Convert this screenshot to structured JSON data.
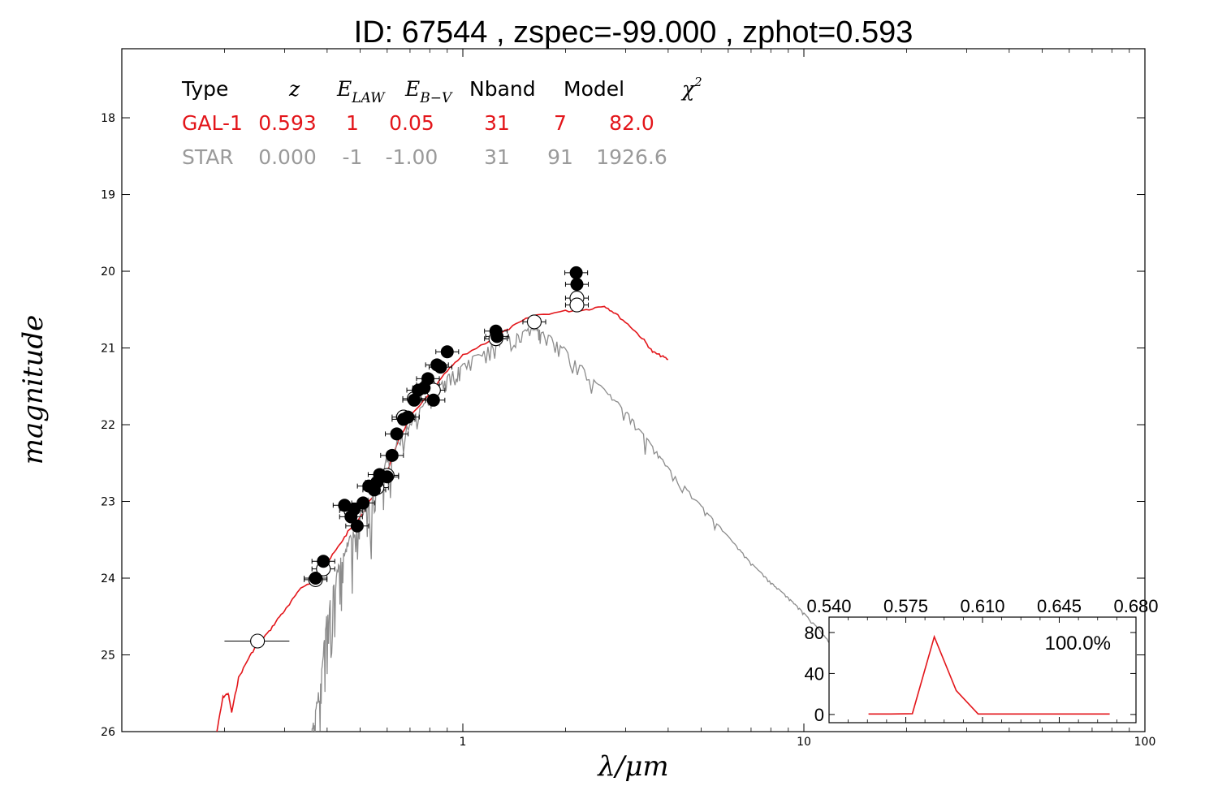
{
  "chart_data": [
    {
      "type": "line",
      "title": "ID:  67544 , zspec=-99.000 , zphot=0.593",
      "xlabel": "λ/μm",
      "ylabel": "magnitude",
      "xscale": "log",
      "xlim": [
        0.1,
        100
      ],
      "ylim": [
        26,
        17.1
      ],
      "y_inverted": true,
      "x_ticks": [
        {
          "value": 1,
          "label": "1"
        },
        {
          "value": 10,
          "label": "10"
        },
        {
          "value": 100,
          "label": "100"
        }
      ],
      "y_ticks": [
        {
          "value": 18,
          "label": "18"
        },
        {
          "value": 19,
          "label": "19"
        },
        {
          "value": 20,
          "label": "20"
        },
        {
          "value": 21,
          "label": "21"
        },
        {
          "value": 22,
          "label": "22"
        },
        {
          "value": 23,
          "label": "23"
        },
        {
          "value": 24,
          "label": "24"
        },
        {
          "value": 25,
          "label": "25"
        },
        {
          "value": 26,
          "label": "26"
        }
      ],
      "grid": false,
      "info_table": {
        "headers": {
          "type": "Type",
          "z": "z",
          "elaw_base": "E",
          "elaw_sub": "LAW",
          "ebv_base": "E",
          "ebv_sub": "B−V",
          "nband": "Nband",
          "model": "Model",
          "chi_base": "χ",
          "chi_sup": "2"
        },
        "rows": [
          {
            "type": "GAL-1",
            "z": "0.593",
            "elaw": "1",
            "ebv": "0.05",
            "nband": "31",
            "model": "7",
            "chi2": "82.0",
            "color": "#e3161b"
          },
          {
            "type": "STAR",
            "z": "0.000",
            "elaw": "-1",
            "ebv": "-1.00",
            "nband": "31",
            "model": "91",
            "chi2": "1926.6",
            "color": "#9a9a9a"
          }
        ]
      },
      "series": [
        {
          "name": "GAL-1",
          "color": "#e3161b",
          "points": [
            [
              0.19,
              26.0
            ],
            [
              0.198,
              25.55
            ],
            [
              0.205,
              25.5
            ],
            [
              0.21,
              25.75
            ],
            [
              0.22,
              25.3
            ],
            [
              0.235,
              25.05
            ],
            [
              0.25,
              24.85
            ],
            [
              0.27,
              24.7
            ],
            [
              0.29,
              24.5
            ],
            [
              0.31,
              24.35
            ],
            [
              0.33,
              24.15
            ],
            [
              0.36,
              24.05
            ],
            [
              0.39,
              23.95
            ],
            [
              0.4,
              23.8
            ],
            [
              0.43,
              23.6
            ],
            [
              0.46,
              23.4
            ],
            [
              0.5,
              23.2
            ],
            [
              0.55,
              22.9
            ],
            [
              0.6,
              22.6
            ],
            [
              0.65,
              22.2
            ],
            [
              0.7,
              21.9
            ],
            [
              0.8,
              21.6
            ],
            [
              0.9,
              21.3
            ],
            [
              1.0,
              21.1
            ],
            [
              1.2,
              20.9
            ],
            [
              1.4,
              20.72
            ],
            [
              1.6,
              20.58
            ],
            [
              2.0,
              20.52
            ],
            [
              2.3,
              20.5
            ],
            [
              2.6,
              20.45
            ],
            [
              2.8,
              20.55
            ],
            [
              3.1,
              20.72
            ],
            [
              3.4,
              20.9
            ],
            [
              3.6,
              21.05
            ],
            [
              3.8,
              21.1
            ],
            [
              4.0,
              21.15
            ]
          ]
        },
        {
          "name": "STAR",
          "color": "#8c8c8c",
          "points": [
            [
              0.36,
              26.0
            ],
            [
              0.38,
              25.4
            ],
            [
              0.4,
              24.4
            ],
            [
              0.43,
              23.8
            ],
            [
              0.46,
              23.5
            ],
            [
              0.5,
              23.15
            ],
            [
              0.55,
              22.8
            ],
            [
              0.6,
              22.4
            ],
            [
              0.7,
              21.95
            ],
            [
              0.8,
              21.6
            ],
            [
              0.9,
              21.35
            ],
            [
              1.0,
              21.2
            ],
            [
              1.2,
              20.95
            ],
            [
              1.4,
              20.8
            ],
            [
              1.6,
              20.72
            ],
            [
              1.7,
              20.75
            ],
            [
              2.0,
              21.0
            ],
            [
              2.5,
              21.45
            ],
            [
              3.0,
              21.8
            ],
            [
              3.5,
              22.2
            ],
            [
              4.0,
              22.55
            ],
            [
              5.0,
              23.05
            ],
            [
              6.0,
              23.45
            ],
            [
              7.0,
              23.8
            ],
            [
              8.0,
              24.05
            ],
            [
              9.0,
              24.25
            ],
            [
              10.0,
              24.45
            ],
            [
              11.0,
              24.65
            ],
            [
              12.0,
              24.85
            ]
          ]
        }
      ],
      "observed_filled": [
        {
          "x": 0.37,
          "y": 24.0
        },
        {
          "x": 0.39,
          "y": 23.78
        },
        {
          "x": 0.45,
          "y": 23.05
        },
        {
          "x": 0.47,
          "y": 23.2
        },
        {
          "x": 0.48,
          "y": 23.1
        },
        {
          "x": 0.49,
          "y": 23.32
        },
        {
          "x": 0.51,
          "y": 23.02
        },
        {
          "x": 0.53,
          "y": 22.8
        },
        {
          "x": 0.55,
          "y": 22.85
        },
        {
          "x": 0.56,
          "y": 22.75
        },
        {
          "x": 0.57,
          "y": 22.65
        },
        {
          "x": 0.6,
          "y": 22.68
        },
        {
          "x": 0.62,
          "y": 22.4
        },
        {
          "x": 0.64,
          "y": 22.12
        },
        {
          "x": 0.67,
          "y": 21.93
        },
        {
          "x": 0.69,
          "y": 21.9
        },
        {
          "x": 0.72,
          "y": 21.68
        },
        {
          "x": 0.74,
          "y": 21.55
        },
        {
          "x": 0.77,
          "y": 21.52
        },
        {
          "x": 0.79,
          "y": 21.4
        },
        {
          "x": 0.82,
          "y": 21.68
        },
        {
          "x": 0.84,
          "y": 21.22
        },
        {
          "x": 0.86,
          "y": 21.25
        },
        {
          "x": 0.9,
          "y": 21.05
        },
        {
          "x": 1.25,
          "y": 20.78
        },
        {
          "x": 1.26,
          "y": 20.85
        },
        {
          "x": 2.15,
          "y": 20.02
        },
        {
          "x": 2.16,
          "y": 20.17
        }
      ],
      "observed_open": [
        {
          "x": 0.25,
          "y": 24.82
        },
        {
          "x": 0.37,
          "y": 24.02
        },
        {
          "x": 0.39,
          "y": 23.88
        },
        {
          "x": 0.47,
          "y": 23.12
        },
        {
          "x": 0.56,
          "y": 22.82
        },
        {
          "x": 0.6,
          "y": 22.66
        },
        {
          "x": 0.67,
          "y": 21.9
        },
        {
          "x": 0.72,
          "y": 21.66
        },
        {
          "x": 0.79,
          "y": 21.48
        },
        {
          "x": 0.82,
          "y": 21.55
        },
        {
          "x": 1.25,
          "y": 20.88
        },
        {
          "x": 1.62,
          "y": 20.66
        },
        {
          "x": 2.16,
          "y": 20.35
        },
        {
          "x": 2.16,
          "y": 20.44
        }
      ]
    },
    {
      "type": "line",
      "title": "",
      "label": "100.0%",
      "xlim": [
        0.54,
        0.68
      ],
      "ylim": [
        -8,
        95
      ],
      "x_ticks": [
        {
          "value": 0.54,
          "label": "0.540"
        },
        {
          "value": 0.575,
          "label": "0.575"
        },
        {
          "value": 0.61,
          "label": "0.610"
        },
        {
          "value": 0.645,
          "label": "0.645"
        },
        {
          "value": 0.68,
          "label": "0.680"
        }
      ],
      "y_ticks": [
        {
          "value": 0,
          "label": "0"
        },
        {
          "value": 40,
          "label": "40"
        },
        {
          "value": 80,
          "label": "80"
        }
      ],
      "series": [
        {
          "color": "#e3161b",
          "points": [
            [
              0.558,
              0.5
            ],
            [
              0.568,
              0.5
            ],
            [
              0.578,
              0.8
            ],
            [
              0.588,
              75.8
            ],
            [
              0.598,
              23.4
            ],
            [
              0.608,
              0.5
            ],
            [
              0.618,
              0.5
            ],
            [
              0.628,
              0.5
            ],
            [
              0.638,
              0.5
            ],
            [
              0.648,
              0.5
            ],
            [
              0.658,
              0.5
            ],
            [
              0.668,
              0.5
            ]
          ]
        }
      ]
    }
  ]
}
